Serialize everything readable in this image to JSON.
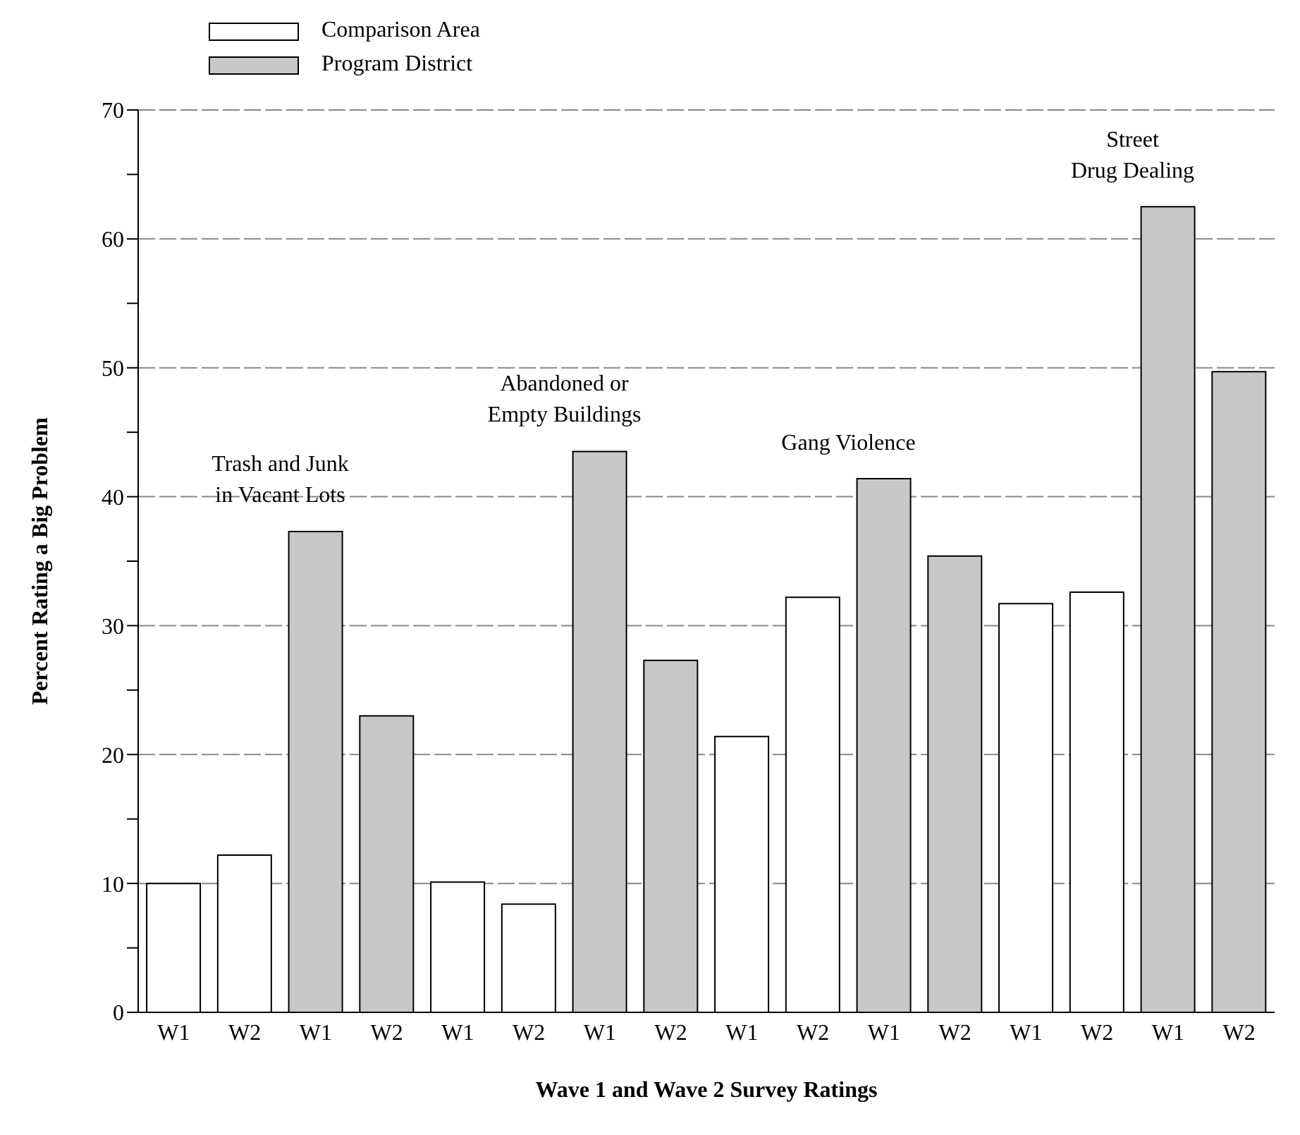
{
  "chart_data": {
    "type": "bar",
    "xlabel": "Wave 1 and Wave 2 Survey Ratings",
    "ylabel": "Percent Rating a Big Problem",
    "categories": [
      "W1",
      "W2",
      "W1",
      "W2",
      "W1",
      "W2",
      "W1",
      "W2",
      "W1",
      "W2",
      "W1",
      "W2",
      "W1",
      "W2",
      "W1",
      "W2"
    ],
    "series": [
      {
        "name": "Comparison Area",
        "color": "#ffffff",
        "values": [
          10,
          12.2,
          null,
          null,
          10.1,
          8.4,
          null,
          null,
          21.4,
          32.2,
          null,
          null,
          31.7,
          32.6,
          null,
          null
        ]
      },
      {
        "name": "Program District",
        "color": "#c8c8c8",
        "values": [
          null,
          null,
          37.3,
          23,
          null,
          null,
          43.5,
          27.3,
          null,
          null,
          41.4,
          35.4,
          null,
          null,
          62.5,
          49.7
        ]
      }
    ],
    "annotations": [
      "Trash and Junk\nin Vacant Lots",
      "Abandoned or\nEmpty Buildings",
      "Gang Violence",
      "Street\nDrug Dealing"
    ],
    "ylim": [
      0,
      70
    ],
    "yticks": [
      0,
      {
        "value": 5,
        "label": null
      },
      10,
      {
        "value": 15,
        "label": null
      },
      20,
      {
        "value": 25,
        "label": null
      },
      30,
      {
        "value": 35,
        "label": null
      },
      40,
      {
        "value": 45,
        "label": null
      },
      50,
      {
        "value": 55,
        "label": null
      },
      60,
      {
        "value": 65,
        "label": null
      },
      70
    ],
    "grid": "y",
    "legend": "top left"
  }
}
